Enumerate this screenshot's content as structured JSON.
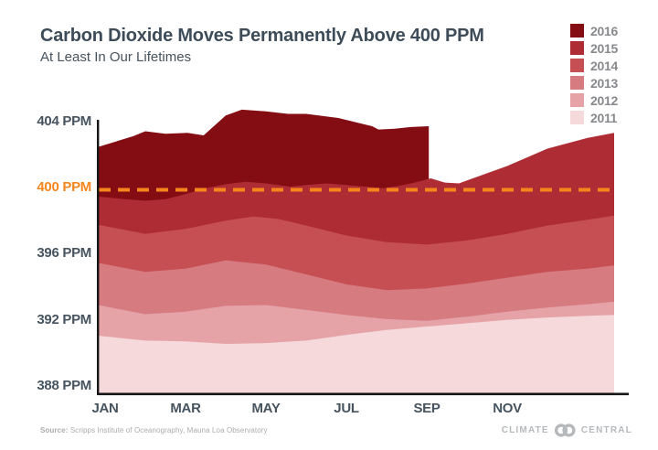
{
  "header": {
    "title": "Carbon Dioxide Moves Permanently Above 400 PPM",
    "subtitle": "At Least In Our Lifetimes"
  },
  "legend": {
    "items": [
      {
        "label": "2016",
        "color": "#840d13"
      },
      {
        "label": "2015",
        "color": "#ae2d34"
      },
      {
        "label": "2014",
        "color": "#c64f54"
      },
      {
        "label": "2013",
        "color": "#d67b80"
      },
      {
        "label": "2012",
        "color": "#e5a3a7"
      },
      {
        "label": "2011",
        "color": "#f6d9db"
      }
    ]
  },
  "axes": {
    "y_ticks": [
      {
        "label": "404 PPM",
        "value": 404,
        "accent": false
      },
      {
        "label": "400 PPM",
        "value": 400,
        "accent": true
      },
      {
        "label": "396 PPM",
        "value": 396,
        "accent": false
      },
      {
        "label": "392 PPM",
        "value": 392,
        "accent": false
      },
      {
        "label": "388 PPM",
        "value": 388,
        "accent": false
      }
    ],
    "x_ticks": [
      {
        "label": "JAN",
        "month_index": 0
      },
      {
        "label": "MAR",
        "month_index": 2
      },
      {
        "label": "MAY",
        "month_index": 4
      },
      {
        "label": "JUL",
        "month_index": 6
      },
      {
        "label": "SEP",
        "month_index": 8
      },
      {
        "label": "NOV",
        "month_index": 10
      }
    ]
  },
  "footer": {
    "source_label": "Source:",
    "source_text": " Scripps Institute of Oceanography, Mauna Loa Observatory",
    "brand_left": "CLIMATE",
    "brand_right": "CENTRAL"
  },
  "chart_data": {
    "type": "area",
    "mode": "overlaid-areas, most recent year drawn first (back), earlier years drawn over it",
    "title": "Carbon Dioxide Moves Permanently Above 400 PPM",
    "subtitle": "At Least In Our Lifetimes",
    "xlabel": "",
    "ylabel": "PPM",
    "x_note": "month scale: 0 = Jan 1, 12 = Dec 31; points are [month, ppm] read from chart",
    "ylim": [
      387.5,
      405.5
    ],
    "y_tick_values": [
      388,
      392,
      396,
      400,
      404
    ],
    "grid": false,
    "legend_position": "top-right",
    "threshold_value": 400,
    "threshold_label": "400 PPM",
    "threshold_color": "#f5851c",
    "threshold_style": "dashed",
    "note": "2016 series ends abruptly in early September (data cutoff)",
    "series": [
      {
        "name": "2016",
        "color": "#840d13",
        "points": [
          [
            -0.18,
            402.45
          ],
          [
            0.7,
            403.1
          ],
          [
            1,
            403.4
          ],
          [
            1.5,
            403.25
          ],
          [
            2.05,
            403.3
          ],
          [
            2.45,
            403.15
          ],
          [
            3,
            404.35
          ],
          [
            3.4,
            404.7
          ],
          [
            4,
            404.6
          ],
          [
            4.55,
            404.45
          ],
          [
            5,
            404.45
          ],
          [
            5.8,
            404.2
          ],
          [
            6.3,
            403.9
          ],
          [
            6.64,
            403.7
          ],
          [
            6.8,
            403.5
          ],
          [
            7.2,
            403.55
          ],
          [
            7.6,
            403.65
          ],
          [
            8.05,
            403.7
          ]
        ]
      },
      {
        "name": "2015",
        "color": "#ae2d34",
        "points": [
          [
            -0.18,
            399.45
          ],
          [
            0.5,
            399.3
          ],
          [
            1,
            399.2
          ],
          [
            1.5,
            399.3
          ],
          [
            2,
            399.6
          ],
          [
            2.5,
            399.95
          ],
          [
            3,
            400.2
          ],
          [
            3.5,
            400.35
          ],
          [
            4,
            400.25
          ],
          [
            4.6,
            400.05
          ],
          [
            5,
            400.15
          ],
          [
            5.5,
            400.25
          ],
          [
            6,
            400.15
          ],
          [
            6.5,
            400.05
          ],
          [
            6.9,
            399.95
          ],
          [
            7.3,
            400.1
          ],
          [
            7.7,
            400.3
          ],
          [
            8.1,
            400.55
          ],
          [
            8.45,
            400.3
          ],
          [
            8.8,
            400.25
          ],
          [
            9.2,
            400.6
          ],
          [
            10,
            401.3
          ],
          [
            11,
            402.35
          ],
          [
            12,
            403.0
          ],
          [
            12.66,
            403.3
          ]
        ]
      },
      {
        "name": "2014",
        "color": "#c64f54",
        "points": [
          [
            -0.18,
            397.75
          ],
          [
            1,
            397.2
          ],
          [
            2,
            397.5
          ],
          [
            3,
            398.0
          ],
          [
            3.7,
            398.25
          ],
          [
            4.3,
            398.1
          ],
          [
            5,
            397.7
          ],
          [
            6,
            397.1
          ],
          [
            7,
            396.7
          ],
          [
            8,
            396.55
          ],
          [
            9,
            396.8
          ],
          [
            10,
            397.2
          ],
          [
            11,
            397.7
          ],
          [
            12,
            398.05
          ],
          [
            12.66,
            398.3
          ]
        ]
      },
      {
        "name": "2013",
        "color": "#d67b80",
        "points": [
          [
            -0.18,
            395.45
          ],
          [
            1,
            394.9
          ],
          [
            2,
            395.1
          ],
          [
            3,
            395.6
          ],
          [
            4,
            395.35
          ],
          [
            5,
            394.75
          ],
          [
            6,
            394.15
          ],
          [
            7,
            393.8
          ],
          [
            8,
            393.9
          ],
          [
            9,
            394.2
          ],
          [
            10,
            394.55
          ],
          [
            11,
            394.9
          ],
          [
            12,
            395.1
          ],
          [
            12.66,
            395.3
          ]
        ]
      },
      {
        "name": "2012",
        "color": "#e5a3a7",
        "points": [
          [
            -0.18,
            392.9
          ],
          [
            1,
            392.35
          ],
          [
            2,
            392.5
          ],
          [
            3,
            392.85
          ],
          [
            4,
            392.9
          ],
          [
            5,
            392.6
          ],
          [
            6,
            392.3
          ],
          [
            7,
            392.05
          ],
          [
            8,
            391.95
          ],
          [
            9,
            392.2
          ],
          [
            10,
            392.5
          ],
          [
            11,
            392.75
          ],
          [
            12,
            392.95
          ],
          [
            12.66,
            393.1
          ]
        ]
      },
      {
        "name": "2011",
        "color": "#f6d9db",
        "points": [
          [
            -0.18,
            391.05
          ],
          [
            1,
            390.75
          ],
          [
            2,
            390.7
          ],
          [
            3,
            390.55
          ],
          [
            4,
            390.6
          ],
          [
            5,
            390.75
          ],
          [
            6,
            391.1
          ],
          [
            7,
            391.4
          ],
          [
            8,
            391.6
          ],
          [
            9,
            391.8
          ],
          [
            10,
            392.0
          ],
          [
            11,
            392.15
          ],
          [
            12,
            392.25
          ],
          [
            12.66,
            392.3
          ]
        ]
      }
    ]
  }
}
